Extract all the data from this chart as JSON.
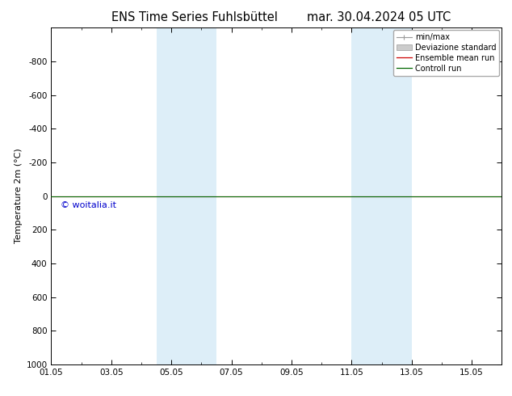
{
  "title_left": "ENS Time Series Fuhlsbüttel",
  "title_right": "mar. 30.04.2024 05 UTC",
  "ylabel": "Temperature 2m (°C)",
  "ylim_bottom": 1000,
  "ylim_top": -1000,
  "yticks": [
    -800,
    -600,
    -400,
    -200,
    0,
    200,
    400,
    600,
    800,
    1000
  ],
  "xlim_min": 0,
  "xlim_max": 15,
  "xtick_labels": [
    "01.05",
    "03.05",
    "05.05",
    "07.05",
    "09.05",
    "11.05",
    "13.05",
    "15.05"
  ],
  "xtick_positions": [
    0,
    2,
    4,
    6,
    8,
    10,
    12,
    14
  ],
  "shaded_bands": [
    {
      "x_start": 3.5,
      "x_end": 5.5,
      "color": "#ddeef8"
    },
    {
      "x_start": 10.0,
      "x_end": 12.0,
      "color": "#ddeef8"
    }
  ],
  "line_color_ensemble": "#cc0000",
  "line_color_control": "#006600",
  "watermark_text": "© woitalia.it",
  "watermark_color": "#0000cc",
  "legend_minmax_color": "#999999",
  "legend_std_color": "#cccccc",
  "legend_items": [
    {
      "label": "min/max",
      "color": "#999999"
    },
    {
      "label": "Deviazione standard",
      "color": "#cccccc"
    },
    {
      "label": "Ensemble mean run",
      "color": "#cc0000"
    },
    {
      "label": "Controll run",
      "color": "#006600"
    }
  ],
  "background_color": "#ffffff",
  "plot_background": "#ffffff",
  "font_size_title": 10.5,
  "font_size_axis_label": 8,
  "font_size_ticks": 7.5,
  "font_size_legend": 7,
  "font_size_watermark": 8
}
